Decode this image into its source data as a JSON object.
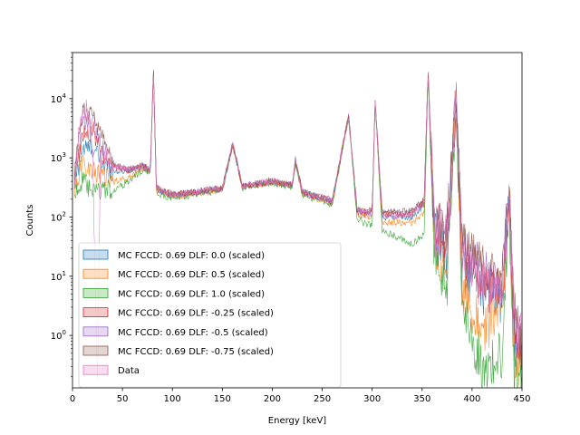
{
  "chart_data": {
    "type": "line",
    "xlabel": "Energy [keV]",
    "ylabel": "Counts",
    "xlim": [
      0,
      450
    ],
    "ylim": [
      0.13,
      60000
    ],
    "yscale": "log",
    "x_ticks": [
      "0",
      "50",
      "100",
      "150",
      "200",
      "250",
      "300",
      "350",
      "400",
      "450"
    ],
    "y_ticks": [
      {
        "value": 1,
        "label": "10^0"
      },
      {
        "value": 10,
        "label": "10^1"
      },
      {
        "value": 100,
        "label": "10^2"
      },
      {
        "value": 1000,
        "label": "10^3"
      },
      {
        "value": 10000,
        "label": "10^4"
      }
    ],
    "legend_position": "lower-left",
    "grid": false,
    "peaks_keV": [
      81,
      160.6,
      223.2,
      276.4,
      302.9,
      356,
      383.9,
      437
    ],
    "series": [
      {
        "name": "MC FCCD: 0.69 DLF: 0.0 (scaled)",
        "color": "#1f77b4",
        "values": [
          [
            2,
            350
          ],
          [
            10,
            1400
          ],
          [
            20,
            1500
          ],
          [
            30,
            800
          ],
          [
            40,
            600
          ],
          [
            55,
            600
          ],
          [
            70,
            700
          ],
          [
            78,
            600
          ],
          [
            81,
            30000
          ],
          [
            84,
            300
          ],
          [
            100,
            230
          ],
          [
            125,
            260
          ],
          [
            150,
            300
          ],
          [
            160.6,
            1700
          ],
          [
            170,
            320
          ],
          [
            200,
            400
          ],
          [
            220,
            340
          ],
          [
            223.2,
            900
          ],
          [
            230,
            260
          ],
          [
            260,
            180
          ],
          [
            276.4,
            5000
          ],
          [
            285,
            120
          ],
          [
            300,
            110
          ],
          [
            302.9,
            9000
          ],
          [
            310,
            100
          ],
          [
            340,
            100
          ],
          [
            352,
            160
          ],
          [
            356,
            30000
          ],
          [
            362,
            50
          ],
          [
            375,
            25
          ],
          [
            383.9,
            10000
          ],
          [
            390,
            12
          ],
          [
            400,
            9
          ],
          [
            410,
            6
          ],
          [
            420,
            5
          ],
          [
            430,
            4
          ],
          [
            437,
            250
          ],
          [
            442,
            1
          ],
          [
            450,
            0.3
          ]
        ]
      },
      {
        "name": "MC FCCD: 0.69 DLF: 0.5 (scaled)",
        "color": "#ff7f0e",
        "values": [
          [
            2,
            300
          ],
          [
            10,
            800
          ],
          [
            20,
            600
          ],
          [
            30,
            500
          ],
          [
            40,
            400
          ],
          [
            55,
            450
          ],
          [
            70,
            650
          ],
          [
            78,
            600
          ],
          [
            81,
            30000
          ],
          [
            84,
            280
          ],
          [
            100,
            220
          ],
          [
            125,
            250
          ],
          [
            150,
            300
          ],
          [
            160.6,
            1700
          ],
          [
            170,
            320
          ],
          [
            200,
            390
          ],
          [
            220,
            330
          ],
          [
            223.2,
            850
          ],
          [
            230,
            250
          ],
          [
            260,
            170
          ],
          [
            276.4,
            5000
          ],
          [
            285,
            110
          ],
          [
            300,
            95
          ],
          [
            302.9,
            9000
          ],
          [
            310,
            80
          ],
          [
            340,
            80
          ],
          [
            352,
            120
          ],
          [
            356,
            30000
          ],
          [
            362,
            30
          ],
          [
            375,
            15
          ],
          [
            383.9,
            10000
          ],
          [
            390,
            8
          ],
          [
            400,
            3
          ],
          [
            410,
            1
          ],
          [
            420,
            2
          ],
          [
            430,
            3
          ],
          [
            437,
            250
          ],
          [
            442,
            0.5
          ],
          [
            450,
            0.2
          ]
        ]
      },
      {
        "name": "MC FCCD: 0.69 DLF: 1.0 (scaled)",
        "color": "#2ca02c",
        "values": [
          [
            2,
            250
          ],
          [
            10,
            400
          ],
          [
            20,
            250
          ],
          [
            30,
            300
          ],
          [
            40,
            280
          ],
          [
            55,
            380
          ],
          [
            70,
            620
          ],
          [
            78,
            580
          ],
          [
            81,
            30000
          ],
          [
            84,
            250
          ],
          [
            100,
            210
          ],
          [
            125,
            240
          ],
          [
            150,
            290
          ],
          [
            160.6,
            1600
          ],
          [
            170,
            310
          ],
          [
            200,
            380
          ],
          [
            220,
            320
          ],
          [
            223.2,
            800
          ],
          [
            230,
            240
          ],
          [
            260,
            160
          ],
          [
            276.4,
            4800
          ],
          [
            285,
            90
          ],
          [
            300,
            70
          ],
          [
            302.9,
            8500
          ],
          [
            310,
            60
          ],
          [
            340,
            35
          ],
          [
            352,
            50
          ],
          [
            356,
            28000
          ],
          [
            362,
            15
          ],
          [
            375,
            8
          ],
          [
            383.9,
            9000
          ],
          [
            390,
            3
          ],
          [
            400,
            1
          ],
          [
            410,
            0.3
          ],
          [
            420,
            0.3
          ],
          [
            430,
            0.5
          ],
          [
            437,
            200
          ],
          [
            442,
            0.2
          ],
          [
            450,
            0.15
          ]
        ]
      },
      {
        "name": "MC FCCD: 0.69 DLF: -0.25 (scaled)",
        "color": "#d62728",
        "values": [
          [
            2,
            400
          ],
          [
            10,
            2500
          ],
          [
            20,
            3000
          ],
          [
            30,
            1200
          ],
          [
            40,
            700
          ],
          [
            55,
            620
          ],
          [
            70,
            720
          ],
          [
            78,
            620
          ],
          [
            81,
            31000
          ],
          [
            84,
            310
          ],
          [
            100,
            235
          ],
          [
            125,
            265
          ],
          [
            150,
            305
          ],
          [
            160.6,
            1750
          ],
          [
            170,
            325
          ],
          [
            200,
            405
          ],
          [
            220,
            345
          ],
          [
            223.2,
            920
          ],
          [
            230,
            265
          ],
          [
            260,
            185
          ],
          [
            276.4,
            5100
          ],
          [
            285,
            125
          ],
          [
            300,
            120
          ],
          [
            302.9,
            9200
          ],
          [
            310,
            110
          ],
          [
            340,
            115
          ],
          [
            352,
            180
          ],
          [
            356,
            31000
          ],
          [
            362,
            70
          ],
          [
            375,
            45
          ],
          [
            383.9,
            10500
          ],
          [
            390,
            25
          ],
          [
            400,
            15
          ],
          [
            410,
            10
          ],
          [
            420,
            8
          ],
          [
            430,
            6
          ],
          [
            437,
            270
          ],
          [
            442,
            1.5
          ],
          [
            450,
            0.4
          ]
        ]
      },
      {
        "name": "MC FCCD: 0.69 DLF: -0.5 (scaled)",
        "color": "#9467bd",
        "values": [
          [
            2,
            450
          ],
          [
            10,
            4000
          ],
          [
            20,
            4500
          ],
          [
            30,
            1500
          ],
          [
            40,
            750
          ],
          [
            55,
            630
          ],
          [
            70,
            730
          ],
          [
            78,
            630
          ],
          [
            81,
            31500
          ],
          [
            84,
            315
          ],
          [
            100,
            238
          ],
          [
            125,
            268
          ],
          [
            150,
            308
          ],
          [
            160.6,
            1780
          ],
          [
            170,
            328
          ],
          [
            200,
            408
          ],
          [
            220,
            348
          ],
          [
            223.2,
            930
          ],
          [
            230,
            268
          ],
          [
            260,
            188
          ],
          [
            276.4,
            5150
          ],
          [
            285,
            128
          ],
          [
            300,
            125
          ],
          [
            302.9,
            9300
          ],
          [
            310,
            115
          ],
          [
            340,
            120
          ],
          [
            352,
            190
          ],
          [
            356,
            31500
          ],
          [
            362,
            80
          ],
          [
            375,
            55
          ],
          [
            383.9,
            10700
          ],
          [
            390,
            30
          ],
          [
            400,
            18
          ],
          [
            410,
            12
          ],
          [
            420,
            9
          ],
          [
            430,
            7
          ],
          [
            437,
            275
          ],
          [
            442,
            2
          ],
          [
            450,
            0.5
          ]
        ]
      },
      {
        "name": "MC FCCD: 0.69 DLF: -0.75 (scaled)",
        "color": "#8c564b",
        "values": [
          [
            2,
            500
          ],
          [
            10,
            6000
          ],
          [
            20,
            6000
          ],
          [
            30,
            2000
          ],
          [
            40,
            800
          ],
          [
            55,
            640
          ],
          [
            70,
            740
          ],
          [
            78,
            640
          ],
          [
            81,
            32000
          ],
          [
            84,
            320
          ],
          [
            100,
            240
          ],
          [
            125,
            270
          ],
          [
            150,
            310
          ],
          [
            160.6,
            1800
          ],
          [
            170,
            330
          ],
          [
            200,
            410
          ],
          [
            220,
            350
          ],
          [
            223.2,
            950
          ],
          [
            230,
            270
          ],
          [
            260,
            190
          ],
          [
            276.4,
            5200
          ],
          [
            285,
            130
          ],
          [
            300,
            130
          ],
          [
            302.9,
            9400
          ],
          [
            310,
            120
          ],
          [
            340,
            125
          ],
          [
            352,
            200
          ],
          [
            356,
            32000
          ],
          [
            362,
            90
          ],
          [
            375,
            65
          ],
          [
            383.9,
            11000
          ],
          [
            390,
            35
          ],
          [
            400,
            20
          ],
          [
            410,
            14
          ],
          [
            420,
            10
          ],
          [
            430,
            8
          ],
          [
            437,
            280
          ],
          [
            442,
            2.5
          ],
          [
            450,
            0.6
          ]
        ]
      },
      {
        "name": "Data",
        "color": "#e377c2",
        "values": [
          [
            2,
            350
          ],
          [
            8,
            5000
          ],
          [
            15,
            7000
          ],
          [
            20,
            1500
          ],
          [
            25,
            0.15
          ],
          [
            28,
            1200
          ],
          [
            35,
            900
          ],
          [
            45,
            700
          ],
          [
            55,
            650
          ],
          [
            70,
            720
          ],
          [
            78,
            620
          ],
          [
            81,
            32000
          ],
          [
            84,
            300
          ],
          [
            100,
            235
          ],
          [
            125,
            265
          ],
          [
            150,
            305
          ],
          [
            160.6,
            1700
          ],
          [
            170,
            325
          ],
          [
            200,
            405
          ],
          [
            220,
            345
          ],
          [
            223.2,
            920
          ],
          [
            230,
            265
          ],
          [
            260,
            185
          ],
          [
            276.4,
            5100
          ],
          [
            285,
            120
          ],
          [
            300,
            115
          ],
          [
            302.9,
            9200
          ],
          [
            310,
            105
          ],
          [
            340,
            110
          ],
          [
            352,
            170
          ],
          [
            356,
            31000
          ],
          [
            362,
            60
          ],
          [
            375,
            40
          ],
          [
            383.9,
            10500
          ],
          [
            390,
            20
          ],
          [
            400,
            12
          ],
          [
            410,
            8
          ],
          [
            420,
            6
          ],
          [
            430,
            5
          ],
          [
            437,
            260
          ],
          [
            442,
            2
          ],
          [
            450,
            1
          ]
        ]
      }
    ]
  }
}
